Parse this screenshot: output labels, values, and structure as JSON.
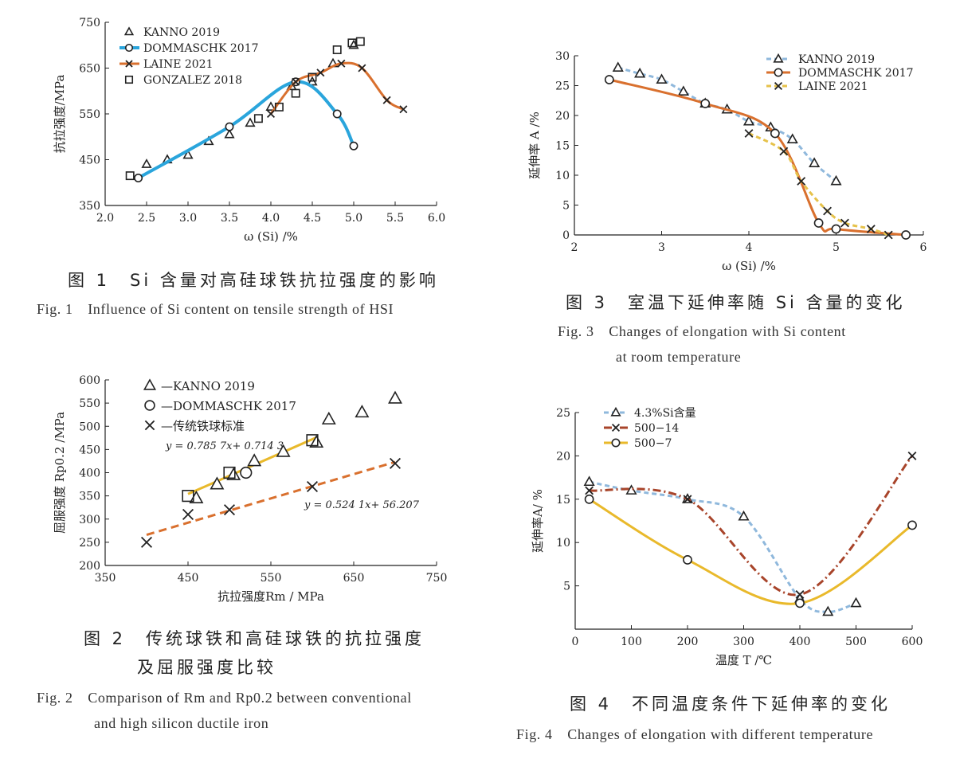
{
  "chart_data": [
    {
      "type": "line",
      "ylabel": "抗拉强度/MPa",
      "xlabel": "ω (Si) /%",
      "xlim": [
        2.0,
        6.0
      ],
      "ylim": [
        350,
        750
      ],
      "xticks": [
        "2.0",
        "2.5",
        "3.0",
        "3.5",
        "4.0",
        "4.5",
        "5.0",
        "5.5",
        "6.0"
      ],
      "yticks": [
        "350",
        "450",
        "550",
        "650",
        "750"
      ],
      "legend_position": "top-left",
      "series": [
        {
          "name": "KANNO 2019",
          "marker": "triangle",
          "color": "#222222",
          "x": [
            2.5,
            2.75,
            3.0,
            3.25,
            3.5,
            3.75,
            4.0,
            4.25,
            4.5,
            4.75,
            5.0
          ],
          "y": [
            440,
            450,
            460,
            490,
            505,
            530,
            565,
            610,
            620,
            660,
            700
          ]
        },
        {
          "name": "DOMMASCHK 2017",
          "marker": "circle",
          "color": "#2aa5dc",
          "line": "solid",
          "x": [
            2.4,
            3.5,
            4.3,
            4.8,
            5.0
          ],
          "y": [
            410,
            522,
            620,
            550,
            480
          ]
        },
        {
          "name": "LAINE 2021",
          "marker": "x",
          "color": "#d9702e",
          "line": "solid",
          "x": [
            4.0,
            4.3,
            4.6,
            4.85,
            5.1,
            5.4,
            5.6
          ],
          "y": [
            550,
            620,
            640,
            660,
            650,
            580,
            560
          ]
        },
        {
          "name": "GONZALEZ 2018",
          "marker": "square",
          "color": "#222222",
          "x": [
            2.3,
            3.85,
            4.1,
            4.3,
            4.5,
            4.8,
            4.98,
            5.08
          ],
          "y": [
            415,
            540,
            565,
            595,
            630,
            690,
            705,
            708
          ]
        }
      ]
    },
    {
      "type": "line",
      "ylabel": "延伸率 A /%",
      "xlabel": "ω (Si) /%",
      "xlim": [
        2,
        6
      ],
      "ylim": [
        0,
        30
      ],
      "xticks": [
        "2",
        "3",
        "4",
        "5",
        "6"
      ],
      "yticks": [
        "0",
        "5",
        "10",
        "15",
        "20",
        "25",
        "30"
      ],
      "legend_position": "top-right",
      "series": [
        {
          "name": "KANNO 2019",
          "marker": "triangle",
          "color": "#8fb8dc",
          "line": "dashed",
          "x": [
            2.5,
            2.75,
            3.0,
            3.25,
            3.5,
            3.75,
            4.0,
            4.25,
            4.5,
            4.75,
            5.0
          ],
          "y": [
            28,
            27,
            26,
            24,
            22,
            21,
            19,
            18,
            16,
            12,
            9
          ]
        },
        {
          "name": "DOMMASCHK 2017",
          "marker": "circle",
          "color": "#d9702e",
          "line": "solid",
          "x": [
            2.4,
            3.5,
            4.3,
            4.8,
            5.0,
            5.8
          ],
          "y": [
            26,
            22,
            17,
            2,
            1,
            0
          ]
        },
        {
          "name": "LAINE 2021",
          "marker": "x",
          "color": "#e6c24a",
          "line": "dashed",
          "x": [
            4.0,
            4.4,
            4.6,
            4.9,
            5.1,
            5.4,
            5.6
          ],
          "y": [
            17,
            14,
            9,
            4,
            2,
            1,
            0
          ]
        }
      ]
    },
    {
      "type": "scatter",
      "ylabel": "屈服强度 Rp0.2 /MPa",
      "xlabel": "抗拉强度Rm / MPa",
      "xlim": [
        350,
        750
      ],
      "ylim": [
        200,
        600
      ],
      "xticks": [
        "350",
        "450",
        "550",
        "650",
        "750"
      ],
      "yticks": [
        "200",
        "250",
        "300",
        "350",
        "400",
        "450",
        "500",
        "550",
        "600"
      ],
      "legend_position": "top-left",
      "annotations": [
        "y = 0.785 7x+ 0.714 3",
        "y = 0.524 1x+ 56.207"
      ],
      "series": [
        {
          "name": "—KANNO 2019",
          "marker": "triangle",
          "color": "#222222",
          "x": [
            460,
            485,
            505,
            530,
            565,
            605,
            620,
            660,
            700
          ],
          "y": [
            345,
            375,
            395,
            425,
            445,
            465,
            515,
            530,
            560
          ]
        },
        {
          "name": "—DOMMASCHK 2017",
          "marker": "circle",
          "color": "#222222",
          "x": [
            520
          ],
          "y": [
            400
          ]
        },
        {
          "name": "—传统铁球标准",
          "marker": "x",
          "color": "#222222",
          "x": [
            400,
            450,
            500,
            600,
            700
          ],
          "y": [
            250,
            310,
            320,
            370,
            420
          ]
        },
        {
          "name": "",
          "marker": "square",
          "color": "#222222",
          "x": [
            450,
            500,
            600
          ],
          "y": [
            350,
            400,
            470
          ]
        }
      ],
      "fits": [
        {
          "x": [
            450,
            605
          ],
          "y": [
            354,
            476
          ],
          "color": "#e9b92b",
          "line": "solid"
        },
        {
          "x": [
            400,
            700
          ],
          "y": [
            266,
            423
          ],
          "color": "#d9702e",
          "line": "dashed"
        }
      ]
    },
    {
      "type": "line",
      "ylabel": "延伸率A/ %",
      "xlabel": "温度 T /℃",
      "xlim": [
        0,
        600
      ],
      "ylim": [
        0,
        25
      ],
      "xticks": [
        "0",
        "100",
        "200",
        "300",
        "400",
        "500",
        "600"
      ],
      "yticks": [
        "5",
        "10",
        "15",
        "20",
        "25"
      ],
      "legend_position": "top-left",
      "series": [
        {
          "name": "4.3%Si含量",
          "marker": "triangle",
          "color": "#8fb8dc",
          "line": "dashed",
          "x": [
            25,
            100,
            200,
            300,
            400,
            450,
            500
          ],
          "y": [
            17,
            16,
            15,
            13,
            3.5,
            2,
            3
          ]
        },
        {
          "name": "500−14",
          "marker": "x",
          "color": "#a8442a",
          "line": "dashdot",
          "x": [
            25,
            200,
            400,
            600
          ],
          "y": [
            16,
            15,
            4,
            20
          ]
        },
        {
          "name": "500−7",
          "marker": "circle",
          "color": "#e9b92b",
          "line": "solid",
          "x": [
            25,
            200,
            400,
            600
          ],
          "y": [
            15,
            8,
            3,
            12
          ]
        }
      ]
    }
  ],
  "captions": {
    "fig1_cn": "图 1　Si 含量对高硅球铁抗拉强度的影响",
    "fig1_en": "Fig. 1　Influence of Si content on tensile strength of HSI",
    "fig2_cn_1": "图 2　传统球铁和高硅球铁的抗拉强度",
    "fig2_cn_2": "及屈服强度比较",
    "fig2_en_1": "Fig. 2　Comparison of Rm and Rp0.2 between conventional",
    "fig2_en_2": "and high silicon ductile iron",
    "fig3_cn": "图 3　室温下延伸率随 Si 含量的变化",
    "fig3_en_1": "Fig. 3　Changes of elongation with Si content",
    "fig3_en_2": "at room temperature",
    "fig4_cn": "图 4　不同温度条件下延伸率的变化",
    "fig4_en": "Fig. 4　Changes of elongation with different temperature"
  },
  "colors": {
    "axis": "#222222",
    "blue": "#2aa5dc",
    "orange": "#d9702e",
    "lightblue": "#8fb8dc",
    "gold": "#e9b92b",
    "brown": "#a8442a"
  }
}
